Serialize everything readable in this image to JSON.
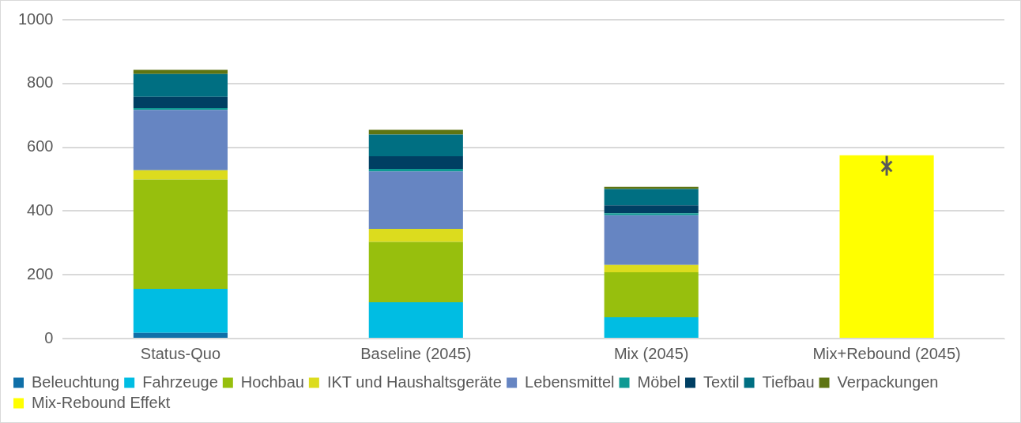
{
  "chart_data": {
    "type": "bar",
    "stacked": true,
    "categories": [
      "Status-Quo",
      "Baseline (2045)",
      "Mix (2045)",
      "Mix+Rebound (2045)"
    ],
    "series": [
      {
        "name": "Beleuchtung",
        "color": "#0f6fa8",
        "values": [
          18,
          0,
          0,
          null
        ]
      },
      {
        "name": "Fahrzeuge",
        "color": "#00bde3",
        "values": [
          138,
          114,
          67,
          null
        ]
      },
      {
        "name": "Hochbau",
        "color": "#97bf0d",
        "values": [
          343,
          189,
          141,
          null
        ]
      },
      {
        "name": "IKT und Haushaltsgeräte",
        "color": "#dcdc1e",
        "values": [
          29,
          41,
          23,
          null
        ]
      },
      {
        "name": "Lebensmittel",
        "color": "#6685c2",
        "values": [
          189,
          180,
          156,
          null
        ]
      },
      {
        "name": "Möbel",
        "color": "#0f9a93",
        "values": [
          6,
          8,
          6,
          null
        ]
      },
      {
        "name": "Textil",
        "color": "#003f63",
        "values": [
          35,
          40,
          25,
          null
        ]
      },
      {
        "name": "Tiefbau",
        "color": "#006f82",
        "values": [
          72,
          68,
          51,
          null
        ]
      },
      {
        "name": "Verpackungen",
        "color": "#5e7512",
        "values": [
          13,
          15,
          7,
          null
        ]
      },
      {
        "name": "Mix-Rebound Effekt",
        "color": "#ffff00",
        "values": [
          null,
          null,
          null,
          575
        ]
      },
      {
        "type": "scatter",
        "color": "#595959",
        "x": [
          "Mix+Rebound (2045)"
        ],
        "values": [
          540
        ],
        "errors": [
          [
            511,
            573
          ]
        ],
        "marker": "cross"
      }
    ],
    "ylim": [
      0,
      1000
    ],
    "yticks": [
      0,
      200,
      400,
      600,
      800,
      1000
    ],
    "grid": "y",
    "legend": "bottom"
  }
}
